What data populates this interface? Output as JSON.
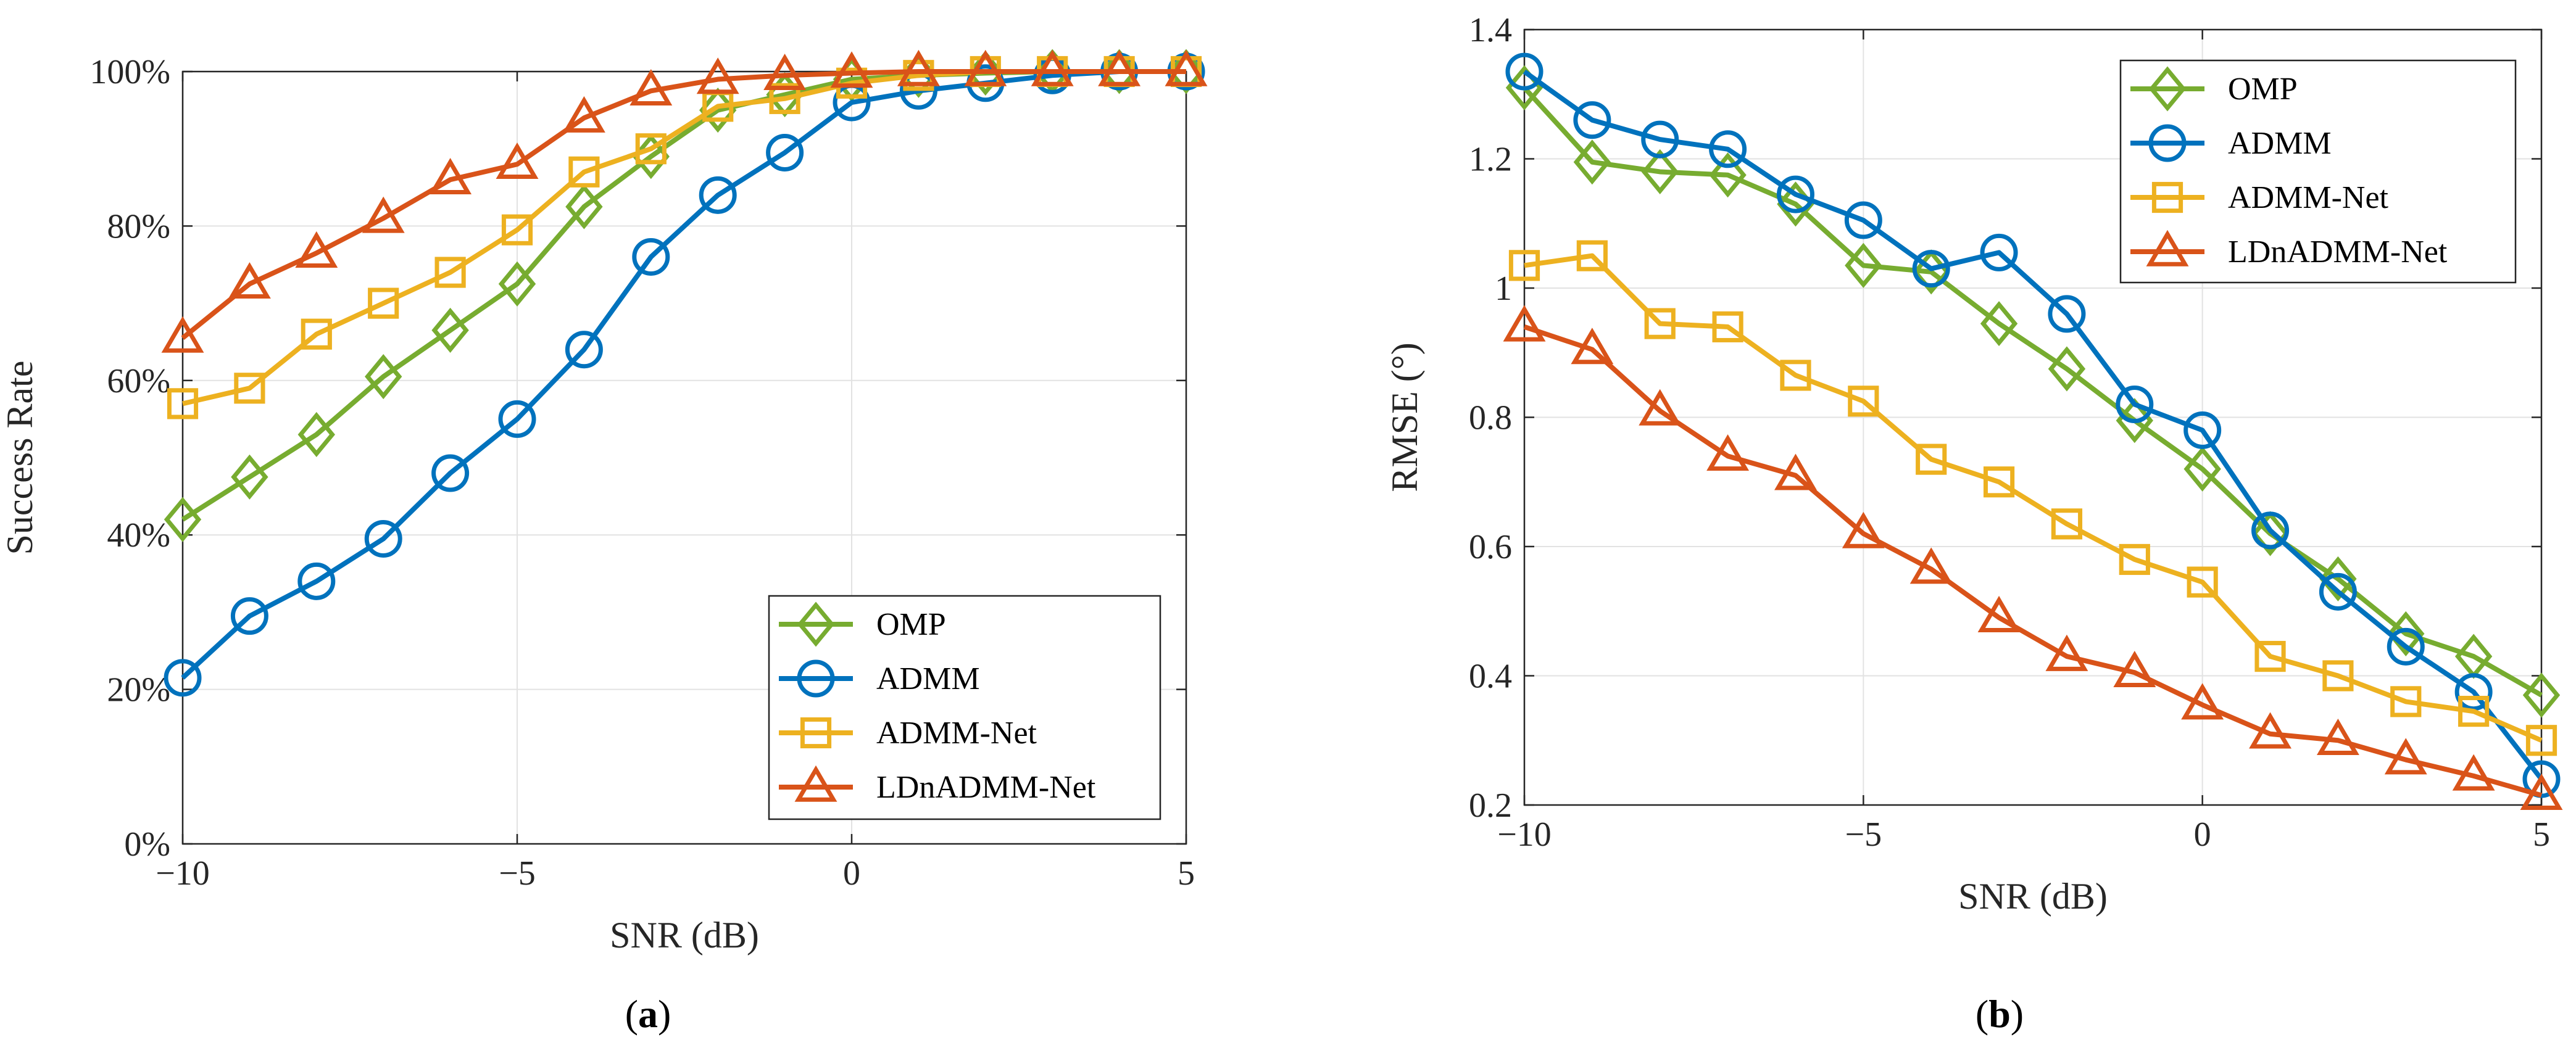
{
  "chart_data": [
    {
      "type": "line",
      "id": "a",
      "panel_label": "a",
      "xlabel": "SNR (dB)",
      "ylabel": "Success Rate",
      "xlim": [
        -10,
        5
      ],
      "ylim": [
        0,
        100
      ],
      "x_ticks": [
        -10,
        -5,
        0,
        5
      ],
      "x_tick_labels": [
        "−10",
        "−5",
        "0",
        "5"
      ],
      "y_ticks": [
        0,
        20,
        40,
        60,
        80,
        100
      ],
      "y_tick_labels": [
        "0%",
        "20%",
        "40%",
        "60%",
        "80%",
        "100%"
      ],
      "grid": true,
      "legend_position": "bottom-right",
      "x": [
        -10,
        -9,
        -8,
        -7,
        -6,
        -5,
        -4,
        -3,
        -2,
        -1,
        0,
        1,
        2,
        3,
        4,
        5
      ],
      "series": [
        {
          "name": "OMP",
          "color": "#77ac30",
          "marker": "diamond",
          "values": [
            42,
            47.5,
            53,
            60.5,
            66.5,
            72.5,
            82.5,
            89,
            95,
            97,
            99,
            99.5,
            99.8,
            100,
            100,
            100
          ]
        },
        {
          "name": "ADMM",
          "color": "#0072bd",
          "marker": "circle",
          "values": [
            21.5,
            29.5,
            34,
            39.5,
            48,
            55,
            64,
            76,
            84,
            89.5,
            96,
            97.5,
            98.5,
            99.5,
            100,
            100
          ]
        },
        {
          "name": "ADMM-Net",
          "color": "#edb120",
          "marker": "square",
          "values": [
            57,
            59,
            66,
            70,
            74,
            79.5,
            87,
            90,
            95.5,
            96.5,
            98.5,
            99.5,
            100,
            100,
            100,
            100
          ]
        },
        {
          "name": "LDnADMM-Net",
          "color": "#d95319",
          "marker": "triangle",
          "values": [
            65.5,
            72.5,
            76.5,
            81,
            86,
            88,
            94,
            97.5,
            99,
            99.5,
            99.8,
            100,
            100,
            100,
            100,
            100
          ]
        }
      ]
    },
    {
      "type": "line",
      "id": "b",
      "panel_label": "b",
      "xlabel": "SNR (dB)",
      "ylabel": "RMSE (°)",
      "xlim": [
        -10,
        5
      ],
      "ylim": [
        0.2,
        1.4
      ],
      "x_ticks": [
        -10,
        -5,
        0,
        5
      ],
      "x_tick_labels": [
        "−10",
        "−5",
        "0",
        "5"
      ],
      "y_ticks": [
        0.2,
        0.4,
        0.6,
        0.8,
        1.0,
        1.2,
        1.4
      ],
      "y_tick_labels": [
        "0.2",
        "0.4",
        "0.6",
        "0.8",
        "1",
        "1.2",
        "1.4"
      ],
      "grid": true,
      "legend_position": "top-right",
      "x": [
        -10,
        -9,
        -8,
        -7,
        -6,
        -5,
        -4,
        -3,
        -2,
        -1,
        0,
        1,
        2,
        3,
        4,
        5
      ],
      "series": [
        {
          "name": "OMP",
          "color": "#77ac30",
          "marker": "diamond",
          "values": [
            1.31,
            1.195,
            1.18,
            1.175,
            1.13,
            1.035,
            1.025,
            0.945,
            0.875,
            0.795,
            0.72,
            0.62,
            0.55,
            0.465,
            0.43,
            0.37
          ]
        },
        {
          "name": "ADMM",
          "color": "#0072bd",
          "marker": "circle",
          "values": [
            1.335,
            1.26,
            1.23,
            1.215,
            1.145,
            1.105,
            1.03,
            1.055,
            0.96,
            0.82,
            0.78,
            0.625,
            0.53,
            0.445,
            0.375,
            0.24
          ]
        },
        {
          "name": "ADMM-Net",
          "color": "#edb120",
          "marker": "square",
          "values": [
            1.035,
            1.05,
            0.945,
            0.94,
            0.865,
            0.825,
            0.735,
            0.7,
            0.635,
            0.58,
            0.545,
            0.43,
            0.4,
            0.36,
            0.345,
            0.3
          ]
        },
        {
          "name": "LDnADMM-Net",
          "color": "#d95319",
          "marker": "triangle",
          "values": [
            0.94,
            0.905,
            0.81,
            0.74,
            0.71,
            0.62,
            0.565,
            0.49,
            0.43,
            0.405,
            0.355,
            0.31,
            0.3,
            0.27,
            0.245,
            0.215
          ]
        }
      ]
    }
  ]
}
